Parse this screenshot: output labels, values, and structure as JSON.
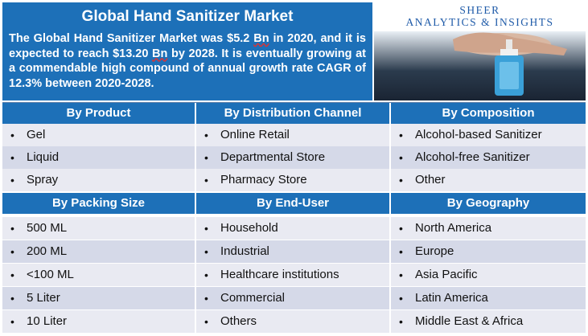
{
  "title": "Global Hand Sanitizer Market",
  "summary": {
    "part1": "The Global Hand Sanitizer Market was $5.2 ",
    "bn1": "Bn",
    "part2": " in 2020, and it is expected to reach $13.20 ",
    "bn2": "Bn",
    "part3": " by 2028. It is eventually growing at a commendable high compound of annual growth rate CAGR of 12.3% between 2020-2028."
  },
  "brand": {
    "line1": "SHEER",
    "line2": "ANALYTICS & INSIGHTS"
  },
  "bullet": "•",
  "section1": {
    "headers": [
      "By Product",
      "By Distribution Channel",
      "By Composition"
    ],
    "rows": [
      [
        "Gel",
        "Online Retail",
        "Alcohol-based Sanitizer"
      ],
      [
        "Liquid",
        "Departmental Store",
        "Alcohol-free Sanitizer"
      ],
      [
        "Spray",
        "Pharmacy Store",
        "Other"
      ]
    ]
  },
  "section2": {
    "headers": [
      "By Packing Size",
      "By End-User",
      "By Geography"
    ],
    "rows": [
      [
        "500 ML",
        "Household",
        "North America"
      ],
      [
        "200 ML",
        "Industrial",
        "Europe"
      ],
      [
        "<100 ML",
        "Healthcare institutions",
        "Asia Pacific"
      ],
      [
        "5 Liter",
        "Commercial",
        "Latin America"
      ],
      [
        "10 Liter",
        "Others",
        "Middle East & Africa"
      ]
    ]
  }
}
